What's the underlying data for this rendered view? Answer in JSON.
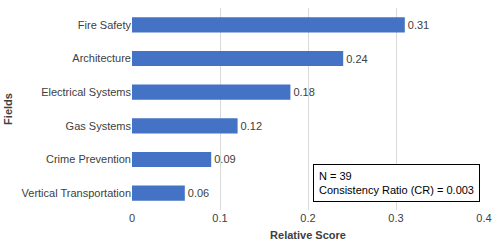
{
  "chart_data": {
    "type": "bar",
    "orientation": "horizontal",
    "categories": [
      "Fire Safety",
      "Architecture",
      "Electrical Systems",
      "Gas Systems",
      "Crime Prevention",
      "Vertical Transportation"
    ],
    "values": [
      0.31,
      0.24,
      0.18,
      0.12,
      0.09,
      0.06
    ],
    "color": "#4472c4",
    "xlim": [
      0,
      0.4
    ],
    "xticks": [
      0,
      0.1,
      0.2,
      0.3,
      0.4
    ],
    "xlabel": "Relative Score",
    "ylabel": "Fields",
    "grid": true,
    "data_labels": true,
    "annotations": [
      "N = 39",
      "Consistency Ratio (CR) = 0.003"
    ]
  }
}
